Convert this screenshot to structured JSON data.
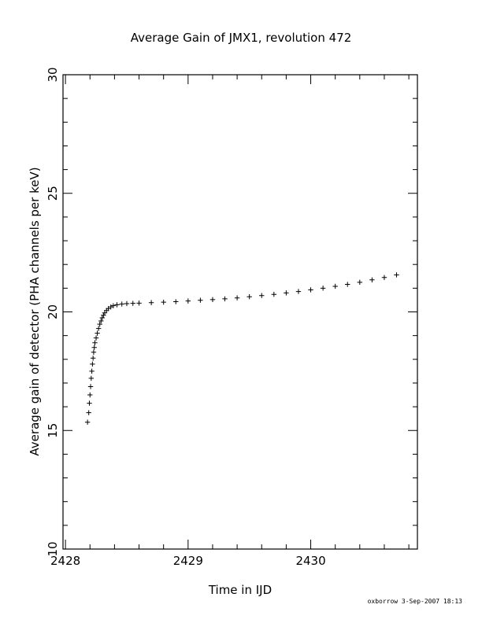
{
  "chart_data": {
    "type": "scatter",
    "title": "Average Gain of JMX1, revolution 472",
    "xlabel": "Time in IJD",
    "ylabel": "Average gain of detector (PHA channels per keV)",
    "xlim": [
      2427.98,
      2430.87
    ],
    "ylim": [
      10,
      30
    ],
    "xticks_major": [
      2428,
      2429,
      2430
    ],
    "yticks_major": [
      10,
      15,
      20,
      25,
      30
    ],
    "marker": "plus",
    "grid": false,
    "series": [
      {
        "points": [
          [
            2428.18,
            15.35
          ],
          [
            2428.19,
            15.75
          ],
          [
            2428.195,
            16.15
          ],
          [
            2428.2,
            16.5
          ],
          [
            2428.205,
            16.85
          ],
          [
            2428.21,
            17.2
          ],
          [
            2428.215,
            17.5
          ],
          [
            2428.22,
            17.8
          ],
          [
            2428.225,
            18.05
          ],
          [
            2428.23,
            18.3
          ],
          [
            2428.235,
            18.5
          ],
          [
            2428.24,
            18.7
          ],
          [
            2428.25,
            18.9
          ],
          [
            2428.26,
            19.1
          ],
          [
            2428.27,
            19.3
          ],
          [
            2428.28,
            19.48
          ],
          [
            2428.29,
            19.62
          ],
          [
            2428.3,
            19.75
          ],
          [
            2428.31,
            19.86
          ],
          [
            2428.32,
            19.96
          ],
          [
            2428.335,
            20.06
          ],
          [
            2428.35,
            20.14
          ],
          [
            2428.37,
            20.21
          ],
          [
            2428.39,
            20.26
          ],
          [
            2428.42,
            20.3
          ],
          [
            2428.46,
            20.33
          ],
          [
            2428.5,
            20.35
          ],
          [
            2428.55,
            20.36
          ],
          [
            2428.6,
            20.37
          ],
          [
            2428.7,
            20.39
          ],
          [
            2428.8,
            20.41
          ],
          [
            2428.9,
            20.43
          ],
          [
            2429.0,
            20.46
          ],
          [
            2429.1,
            20.49
          ],
          [
            2429.2,
            20.52
          ],
          [
            2429.3,
            20.55
          ],
          [
            2429.4,
            20.59
          ],
          [
            2429.5,
            20.64
          ],
          [
            2429.6,
            20.69
          ],
          [
            2429.7,
            20.74
          ],
          [
            2429.8,
            20.8
          ],
          [
            2429.9,
            20.86
          ],
          [
            2430.0,
            20.93
          ],
          [
            2430.1,
            21.0
          ],
          [
            2430.2,
            21.08
          ],
          [
            2430.3,
            21.16
          ],
          [
            2430.4,
            21.25
          ],
          [
            2430.5,
            21.35
          ],
          [
            2430.6,
            21.45
          ],
          [
            2430.7,
            21.56
          ]
        ]
      }
    ]
  },
  "footer": {
    "text": "oxborrow  3-Sep-2007 18:13"
  }
}
